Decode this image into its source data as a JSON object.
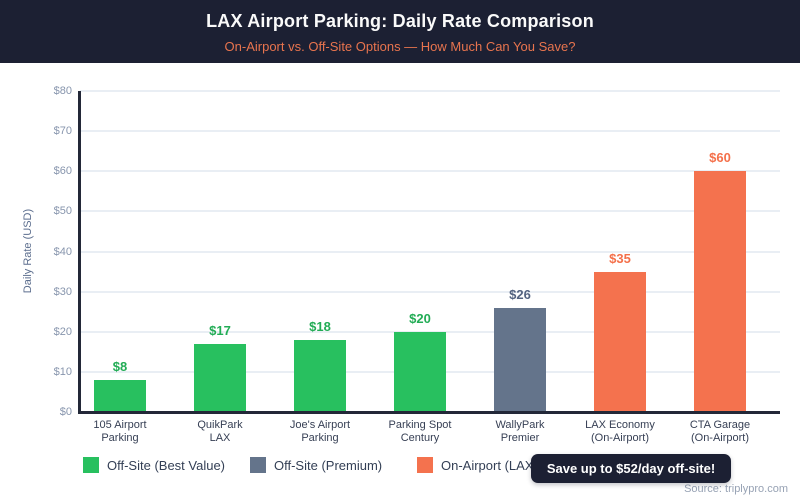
{
  "header": {
    "title": "LAX Airport Parking: Daily Rate Comparison",
    "subtitle": "On-Airport vs. Off-Site Options — How Much Can You Save?"
  },
  "colors": {
    "green": "#28c05f",
    "slate": "#64748b",
    "coral": "#f4724e",
    "navy": "#1c2033",
    "grid": "#e9eef4",
    "axis": "#232838",
    "ytick_text": "#8795ad",
    "xlabel_text": "#363f54",
    "legend_text": "#333f55",
    "source_text": "#97a2b4",
    "value_labels": {
      "green": "#22ac55",
      "slate": "#546380",
      "coral": "#f4704a"
    }
  },
  "chart_data": {
    "type": "bar",
    "title": "LAX Airport Parking: Daily Rate Comparison",
    "subtitle": "On-Airport vs. Off-Site Options — How Much Can You Save?",
    "xlabel": "",
    "ylabel": "Daily Rate (USD)",
    "ylim": [
      0,
      80
    ],
    "ytick_step": 10,
    "ytick_prefix": "$",
    "grid": true,
    "legend_position": "bottom",
    "categories": [
      "105 Airport Parking",
      "QuikPark LAX",
      "Joe's Airport Parking",
      "Parking Spot Century",
      "WallyPark Premier",
      "LAX Economy (On-Airport)",
      "CTA Garage (On-Airport)"
    ],
    "values": [
      8,
      17,
      18,
      20,
      26,
      35,
      60
    ],
    "bars": [
      {
        "label_lines": [
          "105 Airport",
          "Parking"
        ],
        "value": 8,
        "display_value": "$8",
        "color": "green"
      },
      {
        "label_lines": [
          "QuikPark",
          "LAX"
        ],
        "value": 17,
        "display_value": "$17",
        "color": "green"
      },
      {
        "label_lines": [
          "Joe's Airport",
          "Parking"
        ],
        "value": 18,
        "display_value": "$18",
        "color": "green"
      },
      {
        "label_lines": [
          "Parking Spot",
          "Century"
        ],
        "value": 20,
        "display_value": "$20",
        "color": "green"
      },
      {
        "label_lines": [
          "WallyPark",
          "Premier"
        ],
        "value": 26,
        "display_value": "$26",
        "color": "slate"
      },
      {
        "label_lines": [
          "LAX Economy",
          "(On-Airport)"
        ],
        "value": 35,
        "display_value": "$35",
        "color": "coral"
      },
      {
        "label_lines": [
          "CTA Garage",
          "(On-Airport)"
        ],
        "value": 60,
        "display_value": "$60",
        "color": "coral"
      }
    ]
  },
  "legend": {
    "items": [
      {
        "label": "Off-Site (Best Value)",
        "color": "green"
      },
      {
        "label": "Off-Site (Premium)",
        "color": "slate"
      },
      {
        "label": "On-Airport (LAX)",
        "color": "coral"
      }
    ]
  },
  "annotation": {
    "badge": "Save up to $52/day off-site!"
  },
  "source": "Source: triplypro.com"
}
